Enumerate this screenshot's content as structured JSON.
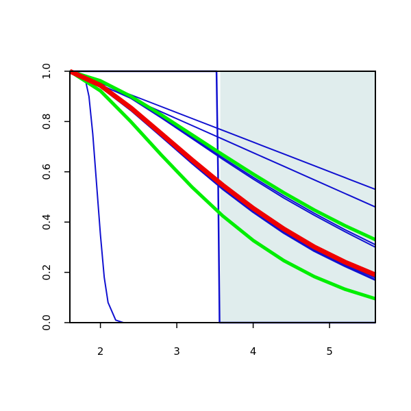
{
  "chart_data": {
    "type": "line",
    "x": [
      1.6,
      2.0,
      2.4,
      2.8,
      3.2,
      3.6,
      4.0,
      4.4,
      4.8,
      5.2,
      5.6
    ],
    "xlim": [
      1.6,
      5.6
    ],
    "ylim": [
      0,
      1
    ],
    "xticks": [
      2,
      3,
      4,
      5
    ],
    "yticks": [
      {
        "value": 0,
        "label": "0.0"
      },
      {
        "value": 0.2,
        "label": "0.2"
      },
      {
        "value": 0.4,
        "label": "0.4"
      },
      {
        "value": 0.6,
        "label": "0.6"
      },
      {
        "value": 0.8,
        "label": "0.8"
      },
      {
        "value": 1,
        "label": "1.0"
      }
    ],
    "shaded_region": {
      "xlim": [
        3.57,
        5.6
      ],
      "color": "#e0eded"
    },
    "series": [
      {
        "color": "#1010d0",
        "width": 2,
        "x": [
          1.6,
          1.7,
          1.8,
          1.85,
          1.9,
          1.95,
          2.0,
          2.05,
          2.1,
          2.2,
          2.3,
          5.6
        ],
        "values": [
          1,
          1,
          0.97,
          0.9,
          0.75,
          0.55,
          0.35,
          0.18,
          0.08,
          0.01,
          0,
          0
        ]
      },
      {
        "color": "#1010d0",
        "width": 2.5,
        "x": [
          1.6,
          3.52,
          3.54,
          3.56,
          5.6
        ],
        "values": [
          1,
          1,
          0.6,
          0,
          0
        ]
      },
      {
        "color": "#1010d0",
        "width": 2,
        "values": [
          1,
          0.953,
          0.906,
          0.859,
          0.812,
          0.765,
          0.718,
          0.671,
          0.624,
          0.577,
          0.53
        ]
      },
      {
        "color": "#1010d0",
        "width": 2,
        "values": [
          1,
          0.946,
          0.892,
          0.838,
          0.784,
          0.73,
          0.676,
          0.622,
          0.568,
          0.514,
          0.46
        ]
      },
      {
        "color": "#1010d0",
        "width": 2,
        "values": [
          1,
          0.96,
          0.895,
          0.818,
          0.737,
          0.656,
          0.578,
          0.504,
          0.435,
          0.37,
          0.31
        ]
      },
      {
        "color": "#1010d0",
        "width": 2,
        "values": [
          1,
          0.958,
          0.892,
          0.814,
          0.732,
          0.65,
          0.571,
          0.496,
          0.427,
          0.362,
          0.3
        ]
      },
      {
        "color": "#1010d0",
        "width": 3,
        "values": [
          1,
          0.94,
          0.848,
          0.744,
          0.639,
          0.538,
          0.446,
          0.364,
          0.292,
          0.232,
          0.18
        ]
      },
      {
        "color": "#1010d0",
        "width": 3,
        "values": [
          1,
          0.938,
          0.845,
          0.74,
          0.634,
          0.532,
          0.44,
          0.357,
          0.285,
          0.225,
          0.17
        ]
      },
      {
        "color": "#00ee00",
        "width": 5,
        "values": [
          1,
          0.962,
          0.9,
          0.826,
          0.747,
          0.668,
          0.591,
          0.517,
          0.448,
          0.386,
          0.33
        ]
      },
      {
        "color": "#00ee00",
        "width": 5,
        "values": [
          1,
          0.922,
          0.799,
          0.666,
          0.539,
          0.425,
          0.327,
          0.247,
          0.183,
          0.133,
          0.095
        ]
      },
      {
        "color": "#ee0000",
        "width": 7,
        "values": [
          1,
          0.944,
          0.854,
          0.751,
          0.647,
          0.547,
          0.455,
          0.373,
          0.301,
          0.241,
          0.19
        ]
      }
    ]
  }
}
